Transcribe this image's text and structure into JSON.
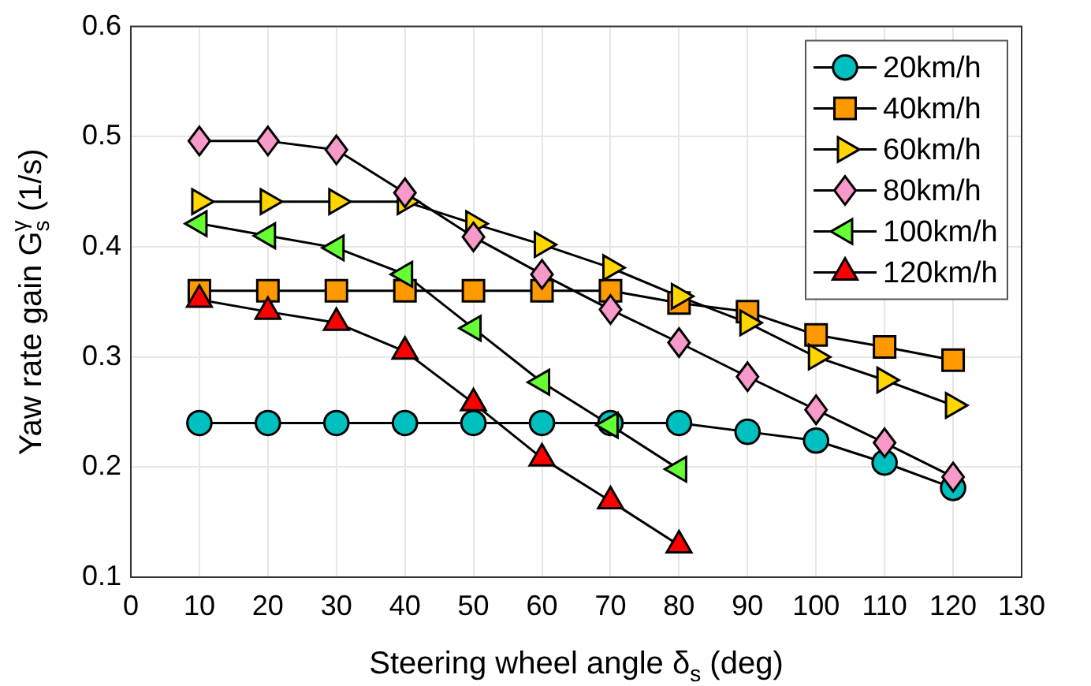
{
  "chart_data": {
    "type": "line",
    "xlabel": "Steering wheel angle δ$_{s}$ (deg)",
    "ylabel": "Yaw rate gain G$_{s}$$^{γ}$ (1/s)",
    "x": [
      10,
      20,
      30,
      40,
      50,
      60,
      70,
      80,
      90,
      100,
      110,
      120
    ],
    "xlim": [
      0,
      130
    ],
    "xticks": [
      0,
      10,
      20,
      30,
      40,
      50,
      60,
      70,
      80,
      90,
      100,
      110,
      120,
      130
    ],
    "ylim": [
      0.1,
      0.6
    ],
    "yticks": [
      0.1,
      0.2,
      0.3,
      0.4,
      0.5,
      0.6
    ],
    "grid": true,
    "legend": "top right",
    "line_style": "solid",
    "series": [
      {
        "name": "20km/h",
        "color": "#00bfbf",
        "marker": "circle",
        "values": [
          0.24,
          0.24,
          0.24,
          0.24,
          0.24,
          0.24,
          0.24,
          0.24,
          0.232,
          0.224,
          0.204,
          0.181
        ]
      },
      {
        "name": "40km/h",
        "color": "#ff9900",
        "marker": "square",
        "values": [
          0.36,
          0.36,
          0.36,
          0.36,
          0.36,
          0.36,
          0.36,
          0.349,
          0.341,
          0.32,
          0.309,
          0.297
        ]
      },
      {
        "name": "60km/h",
        "color": "#ffd700",
        "marker": "triangle-right",
        "values": [
          0.441,
          0.441,
          0.441,
          0.441,
          0.421,
          0.402,
          0.381,
          0.355,
          0.331,
          0.3,
          0.279,
          0.256
        ]
      },
      {
        "name": "80km/h",
        "color": "#f799c9",
        "marker": "diamond",
        "values": [
          0.496,
          0.496,
          0.488,
          0.449,
          0.409,
          0.375,
          0.343,
          0.313,
          0.282,
          0.252,
          0.222,
          0.191
        ]
      },
      {
        "name": "100km/h",
        "color": "#66ff33",
        "marker": "triangle-left",
        "values": [
          0.421,
          0.41,
          0.399,
          0.375,
          0.326,
          0.277,
          0.238,
          0.198,
          null,
          null,
          null,
          null
        ]
      },
      {
        "name": "120km/h",
        "color": "#ff0000",
        "marker": "triangle",
        "values": [
          0.352,
          0.341,
          0.331,
          0.305,
          0.258,
          0.208,
          0.169,
          0.129,
          null,
          null,
          null,
          null
        ]
      }
    ]
  }
}
